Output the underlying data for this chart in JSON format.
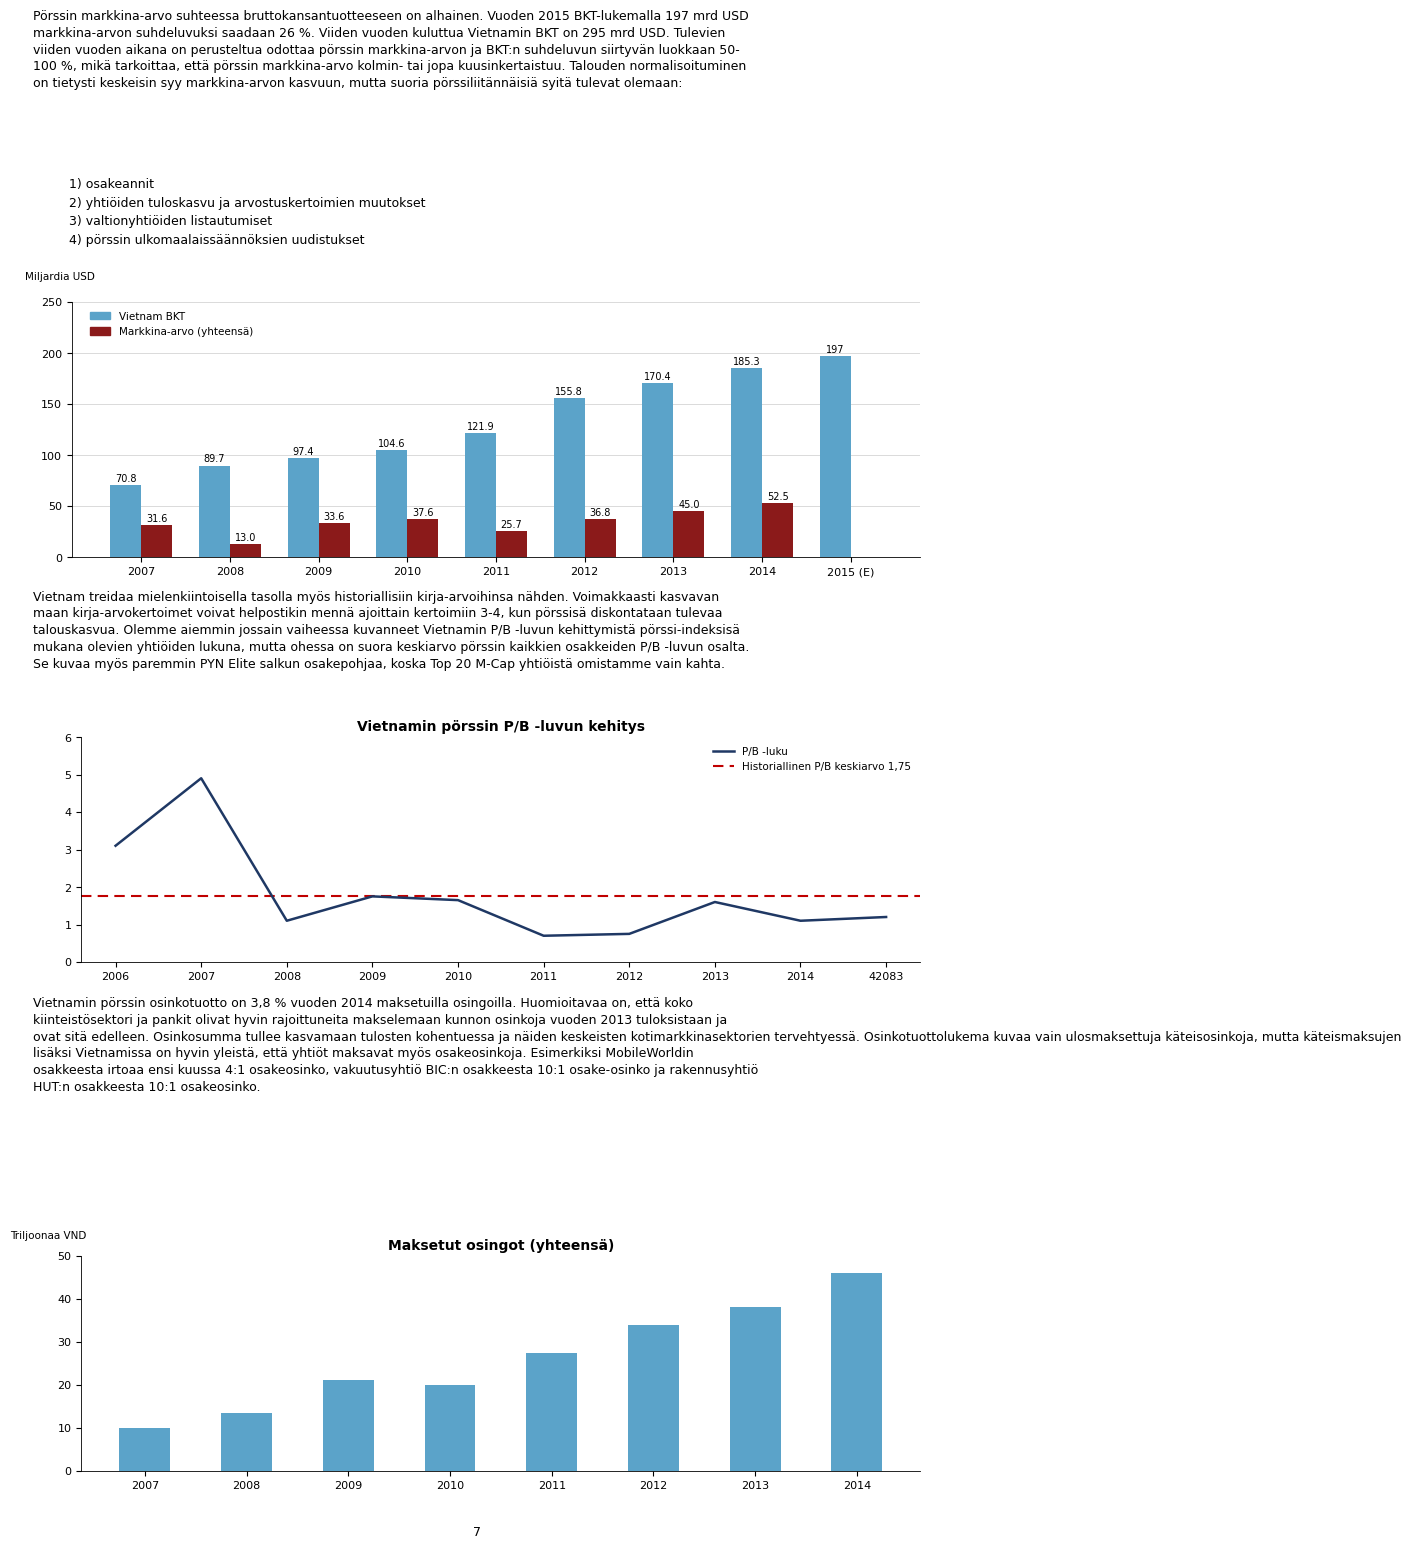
{
  "page_text_top": "Pörssin markkina-arvo suhteessa bruttokansantuotteeseen on alhainen. Vuoden 2015 BKT-lukemalla 197 mrd USD markkina-arvon suhdeluvuksi saadaan 26 %. Viiden vuoden kuluttua Vietnamin BKT on 295 mrd USD. Tulevien viiden vuoden aikana on perusteltua odottaa pörssin markkina-arvon ja BKT:n suhdeluvun siirtyvän luokkaan 50-100 %, mikä tarkoittaa, että pörssin markkina-arvo kolmin- tai jopa kuusinkertaistuu. Talouden normalisoituminen on tietysti keskeisin syy markkina-arvon kasvuun, mutta suoria pörssiliitännäisiä syitä tulevat olemaan:",
  "bullet_lines": [
    "1) osakeannit",
    "2) yhtiöiden tuloskasvu ja arvostuskertoimien muutokset",
    "3) valtionyhtiöiden listautumiset",
    "4) pörssin ulkomaalaissäännöksien uudistukset"
  ],
  "chart1": {
    "ylabel": "Miljardia USD",
    "ylim": [
      0,
      250
    ],
    "yticks": [
      0,
      50,
      100,
      150,
      200,
      250
    ],
    "years": [
      "2007",
      "2008",
      "2009",
      "2010",
      "2011",
      "2012",
      "2013",
      "2014",
      "2015 (E)"
    ],
    "bkt_values": [
      70.8,
      89.7,
      97.4,
      104.6,
      121.9,
      155.8,
      170.4,
      185.3,
      197
    ],
    "markkina_values": [
      31.6,
      13.0,
      33.6,
      37.6,
      25.7,
      36.8,
      45.0,
      52.5,
      0
    ],
    "bkt_color": "#5BA3C9",
    "markkina_color": "#8B1A1A",
    "legend_bkt": "Vietnam BKT",
    "legend_markkina": "Markkina-arvo (yhteensä)"
  },
  "text_middle_lines": [
    "Vietnam treidaa mielenkiintoisella tasolla myös historiallisiin kirja-arvoihinsa nähden. Voimakkaasti kasvavan",
    "maan kirja-arvokertoimet voivat helpostikin mennä ajoittain kertoimiin 3-4, kun pörssisä diskontataan tulevaa",
    "talouskasvua. Olemme aiemmin jossain vaiheessa kuvanneet Vietnamin P/B -luvun kehittymistä pörssi-indeksisä",
    "mukana olevien yhtiöiden lukuna, mutta ohessa on suora keskiarvo pörssin kaikkien osakkeiden P/B -luvun osalta.",
    "Se kuvaa myös paremmin PYN Elite salkun osakepohjaa, koska Top 20 M-Cap yhtiöistä omistamme vain kahta."
  ],
  "chart2": {
    "title": "Vietnamin pörssin P/B -luvun kehitys",
    "ylim": [
      0,
      6
    ],
    "yticks": [
      0,
      1,
      2,
      3,
      4,
      5,
      6
    ],
    "years": [
      "2006",
      "2007",
      "2008",
      "2009",
      "2010",
      "2011",
      "2012",
      "2013",
      "2014",
      "42083"
    ],
    "pb_values": [
      3.1,
      4.9,
      1.1,
      1.75,
      1.65,
      0.7,
      0.75,
      1.6,
      1.1,
      1.2
    ],
    "line_color": "#1F3864",
    "avg_value": 1.75,
    "avg_color": "#C00000",
    "legend_pb": "P/B -luku",
    "legend_avg": "Historiallinen P/B keskiarvo 1,75"
  },
  "text_bottom_lines": [
    "Vietnamin pörssin osinkotuotto on 3,8 % vuoden 2014 maksetuilla osingoilla. Huomioitavaa on, että koko",
    "kiinteistösektori ja pankit olivat hyvin rajoittuneita makselemaan kunnon osinkoja vuoden 2013 tuloksistaan ja",
    "ovat sitä edelleen. Osinkosumma tullee kasvamaan tulosten kohentuessa ja näiden keskeisten kotimarkkinasektorien tervehtyessä. Osinkotuottolukema kuvaa vain ulosmaksettuja käteisosinkoja, mutta käteismaksujen",
    "lisäksi Vietnamissa on hyvin yleistä, että yhtiöt maksavat myös osakeosinkoja. Esimerkiksi MobileWorldin",
    "osakkeesta irtoaa ensi kuussa 4:1 osakeosinko, vakuutusyhtiö BIC:n osakkeesta 10:1 osake-osinko ja rakennusyhtiö",
    "HUT:n osakkeesta 10:1 osakeosinko."
  ],
  "chart3": {
    "title": "Maksetut osingot (yhteensä)",
    "ylabel": "Triljoonaa VND",
    "ylim": [
      0,
      50
    ],
    "yticks": [
      0,
      10,
      20,
      30,
      40,
      50
    ],
    "years": [
      "2007",
      "2008",
      "2009",
      "2010",
      "2011",
      "2012",
      "2013",
      "2014"
    ],
    "values": [
      10,
      13.5,
      21,
      20,
      27.5,
      34,
      38,
      46
    ],
    "bar_color": "#5BA3C9"
  },
  "page_number": "7",
  "text_fontsize": 9.0,
  "text_color": "#000000"
}
